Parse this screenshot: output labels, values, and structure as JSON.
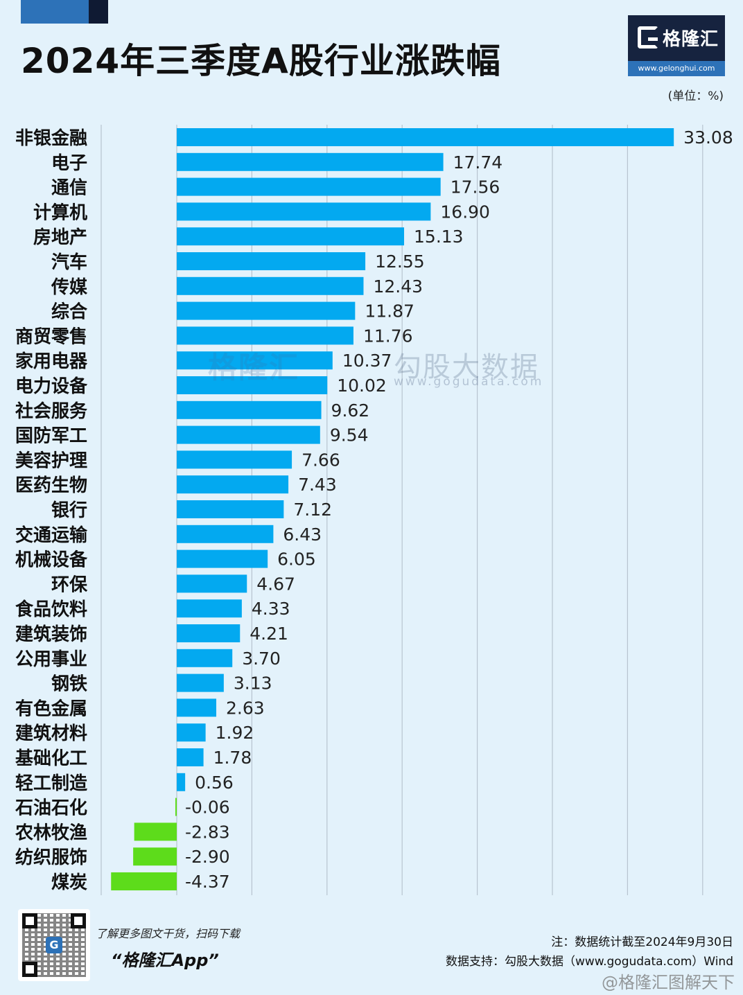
{
  "header": {
    "title": "2024年三季度A股行业涨跌幅",
    "unit": "(单位：%)"
  },
  "logo": {
    "name": "格隆汇",
    "url": "www.gelonghui.com"
  },
  "watermark": {
    "brand": "格隆汇",
    "brand_url": "www.gelonghui.com",
    "data_brand": "勾股大数据",
    "data_url": "www.gogudata.com"
  },
  "colors": {
    "positive": "#03a9f0",
    "negative": "#5ddc1b",
    "grid": "#b7c4cf"
  },
  "chart_data": {
    "type": "bar",
    "orientation": "horizontal",
    "title": "2024年三季度A股行业涨跌幅",
    "unit": "%",
    "categories": [
      "非银金融",
      "电子",
      "通信",
      "计算机",
      "房地产",
      "汽车",
      "传媒",
      "综合",
      "商贸零售",
      "家用电器",
      "电力设备",
      "社会服务",
      "国防军工",
      "美容护理",
      "医药生物",
      "银行",
      "交通运输",
      "机械设备",
      "环保",
      "食品饮料",
      "建筑装饰",
      "公用事业",
      "钢铁",
      "有色金属",
      "建筑材料",
      "基础化工",
      "轻工制造",
      "石油石化",
      "农林牧渔",
      "纺织服饰",
      "煤炭"
    ],
    "values": [
      33.08,
      17.74,
      17.56,
      16.9,
      15.13,
      12.55,
      12.43,
      11.87,
      11.76,
      10.37,
      10.02,
      9.62,
      9.54,
      7.66,
      7.43,
      7.12,
      6.43,
      6.05,
      4.67,
      4.33,
      4.21,
      3.7,
      3.13,
      2.63,
      1.92,
      1.78,
      0.56,
      -0.06,
      -2.83,
      -2.9,
      -4.37
    ],
    "value_labels": [
      "33.08",
      "17.74",
      "17.56",
      "16.90",
      "15.13",
      "12.55",
      "12.43",
      "11.87",
      "11.76",
      "10.37",
      "10.02",
      "9.62",
      "9.54",
      "7.66",
      "7.43",
      "7.12",
      "6.43",
      "6.05",
      "4.67",
      "4.33",
      "4.21",
      "3.70",
      "3.13",
      "2.63",
      "1.92",
      "1.78",
      "0.56",
      "-0.06",
      "-2.83",
      "-2.90",
      "-4.37"
    ],
    "xlim": [
      -5,
      35
    ],
    "grid": true,
    "legend": "none"
  },
  "footer": {
    "promo_line": "了解更多图文干货，扫码下载",
    "app_name": "“格隆汇App”",
    "qr_badge": "G",
    "note": "注：数据统计截至2024年9月30日",
    "source": "数据支持：勾股大数据（www.gogudata.com）Wind",
    "weibo": "@格隆汇图解天下"
  }
}
